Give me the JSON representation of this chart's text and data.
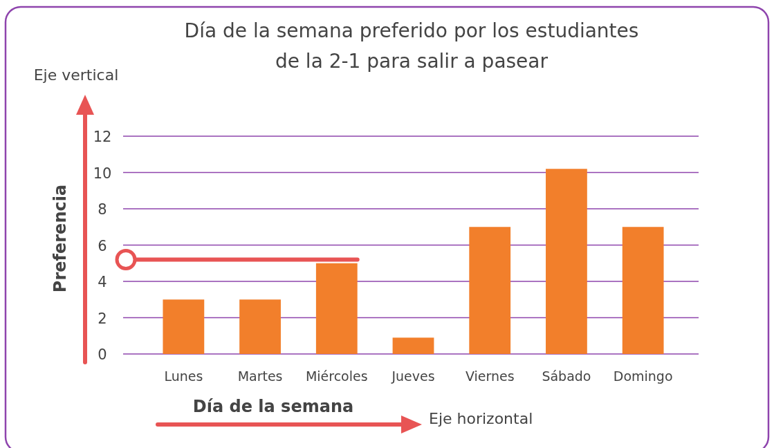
{
  "chart_data": {
    "type": "bar",
    "title": "Día de la semana preferido por los estudiantes de la 2-1 para salir a pasear",
    "xlabel": "Día de la semana",
    "ylabel": "Preferencia",
    "annotations": [
      "Eje vertical",
      "Eje horizontal"
    ],
    "categories": [
      "Lunes",
      "Martes",
      "Miércoles",
      "Jueves",
      "Viernes",
      "Sábado",
      "Domingo"
    ],
    "values": [
      3,
      3,
      5,
      0.9,
      7,
      10.2,
      7
    ],
    "color": "#f27f2b",
    "ylim": [
      0,
      12
    ],
    "yticks": [
      0,
      2,
      4,
      6,
      8,
      10,
      12
    ],
    "grid": "y",
    "ref_lines": [
      {
        "axis": "y",
        "value": 5.2,
        "color": "#e85454"
      }
    ]
  }
}
